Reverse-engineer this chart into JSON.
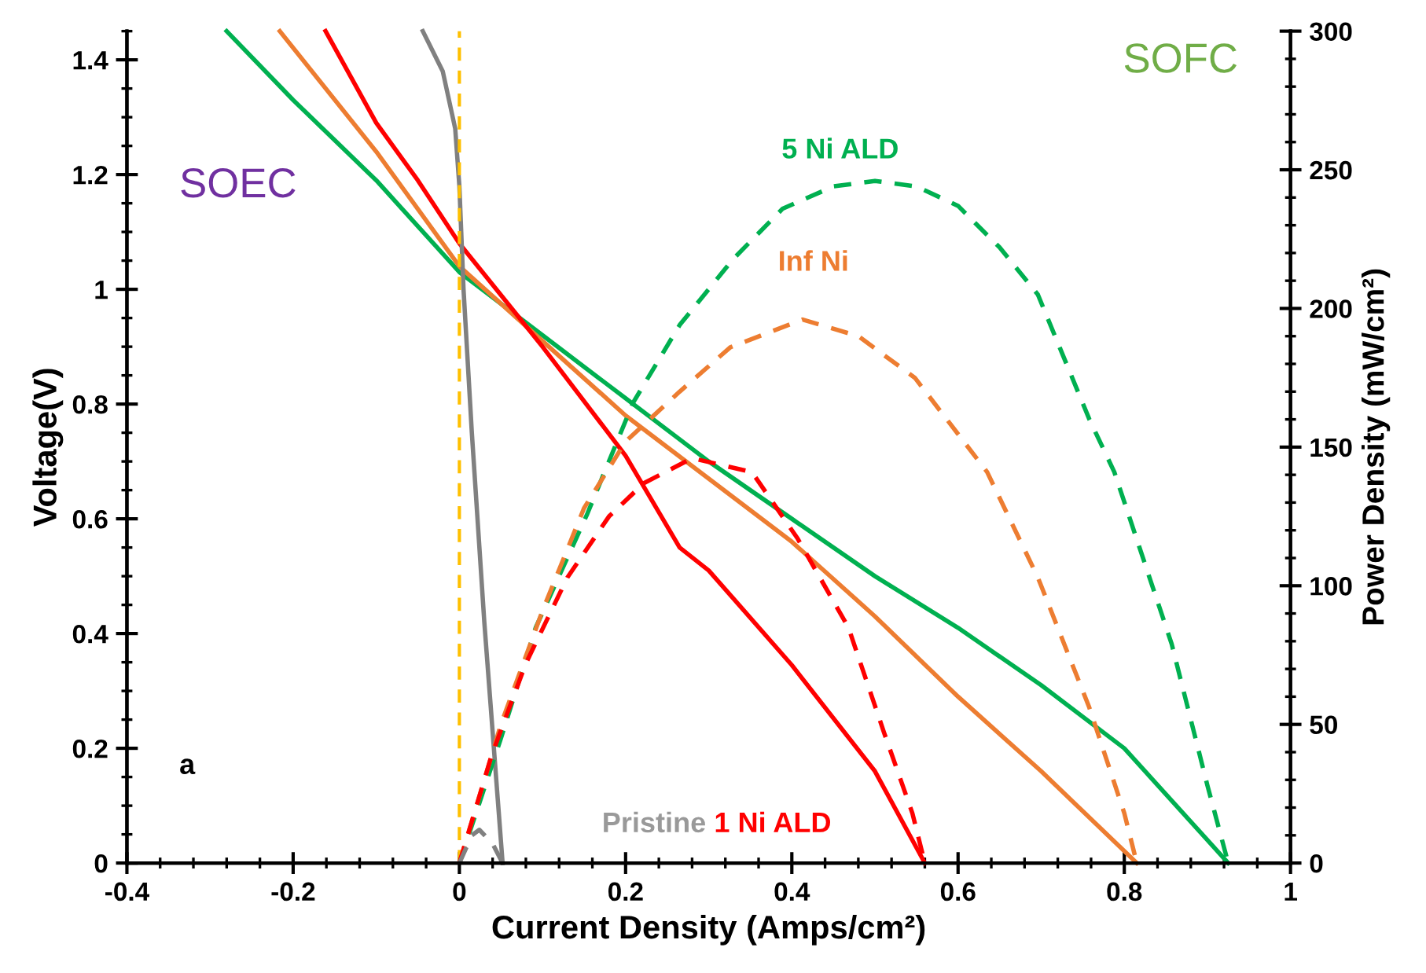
{
  "chart_data": {
    "type": "line",
    "xlabel": "Current Density (Amps/cm²)",
    "ylabel": "Voltage(V)",
    "y2label": "Power Density (mW/cm²)",
    "xlim": [
      -0.4,
      1
    ],
    "xticks": [
      -0.4,
      -0.2,
      0,
      0.2,
      0.4,
      0.6,
      0.8,
      1
    ],
    "ylim": [
      0,
      1.45
    ],
    "yticks": [
      0,
      0.2,
      0.4,
      0.6,
      0.8,
      1,
      1.2,
      1.4
    ],
    "y2lim": [
      0,
      300
    ],
    "y2ticks": [
      0,
      50,
      100,
      150,
      200,
      250,
      300
    ],
    "grid": false,
    "legend": false,
    "marker": "none",
    "series": [
      {
        "color": "#00b050",
        "line_style": "solid",
        "x": [
          -0.28,
          -0.2,
          -0.1,
          0,
          0.1,
          0.2,
          0.3,
          0.4,
          0.5,
          0.6,
          0.7,
          0.8,
          0.925
        ],
        "values": [
          1.45,
          1.33,
          1.19,
          1.03,
          0.92,
          0.81,
          0.7,
          0.6,
          0.5,
          0.41,
          0.31,
          0.2,
          0
        ]
      },
      {
        "color": "#ed7d31",
        "line_style": "solid",
        "x": [
          -0.216,
          -0.1,
          0,
          0.1,
          0.2,
          0.3,
          0.4,
          0.5,
          0.6,
          0.7,
          0.815
        ],
        "values": [
          1.45,
          1.24,
          1.04,
          0.91,
          0.78,
          0.67,
          0.56,
          0.43,
          0.29,
          0.16,
          0
        ]
      },
      {
        "color": "#ff0000",
        "line_style": "solid",
        "x": [
          -0.161,
          -0.1,
          -0.05,
          0,
          0.1,
          0.2,
          0.265,
          0.3,
          0.4,
          0.5,
          0.56
        ],
        "values": [
          1.45,
          1.29,
          1.19,
          1.08,
          0.9,
          0.71,
          0.55,
          0.51,
          0.345,
          0.16,
          0
        ]
      },
      {
        "color": "#808080",
        "line_style": "solid",
        "x": [
          -0.044,
          -0.02,
          -0.005,
          0.0,
          0.005,
          0.015,
          0.03,
          0.052
        ],
        "values": [
          1.45,
          1.38,
          1.28,
          1.18,
          1.0,
          0.75,
          0.42,
          0
        ]
      },
      {
        "name": "5 Ni ALD",
        "color": "#00b050",
        "line_style": "dashed",
        "axis": "y2",
        "x": [
          0,
          0.05,
          0.092,
          0.154,
          0.209,
          0.265,
          0.33,
          0.389,
          0.45,
          0.5,
          0.55,
          0.6,
          0.65,
          0.696,
          0.758,
          0.788,
          0.857,
          0.9,
          0.925
        ],
        "values": [
          0,
          45,
          85,
          126,
          166,
          194,
          218,
          236,
          244,
          246,
          244,
          237,
          222,
          205,
          160,
          141,
          79,
          28,
          0
        ]
      },
      {
        "name": "Inf Ni",
        "color": "#ed7d31",
        "line_style": "dashed",
        "axis": "y2",
        "x": [
          0,
          0.05,
          0.1,
          0.15,
          0.2,
          0.265,
          0.326,
          0.413,
          0.48,
          0.548,
          0.635,
          0.696,
          0.758,
          0.8,
          0.815
        ],
        "values": [
          0,
          50,
          91,
          128,
          152,
          170,
          186,
          196,
          190,
          175,
          141,
          103,
          56,
          18,
          0
        ]
      },
      {
        "name": "1 Ni ALD",
        "color": "#ff0000",
        "line_style": "dashed",
        "axis": "y2",
        "x": [
          0,
          0.039,
          0.08,
          0.13,
          0.18,
          0.222,
          0.28,
          0.352,
          0.407,
          0.468,
          0.511,
          0.545,
          0.56
        ],
        "values": [
          0,
          39,
          72,
          103,
          125,
          137,
          146,
          141,
          117,
          85,
          47,
          18,
          0
        ]
      },
      {
        "name": "Pristine",
        "color": "#808080",
        "line_style": "dashed",
        "axis": "y2",
        "x": [
          0,
          0.015,
          0.024,
          0.04,
          0.052
        ],
        "values": [
          0,
          10,
          12,
          7,
          0
        ]
      }
    ],
    "ref_lines": [
      {
        "axis": "x",
        "value": 0,
        "color": "#ffc000",
        "line_style": "dashed"
      }
    ],
    "annotations": [
      "SOEC",
      "SOFC",
      "a"
    ]
  }
}
